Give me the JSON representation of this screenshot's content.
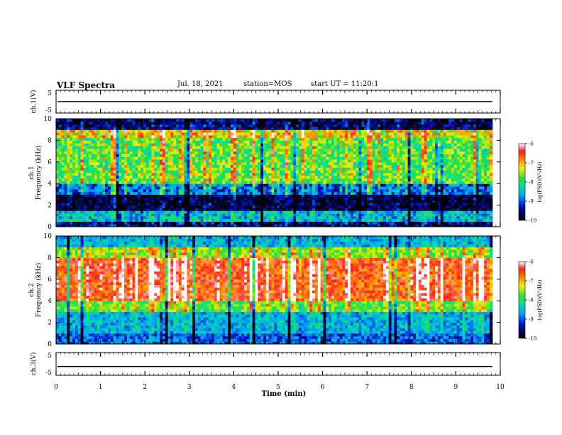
{
  "header": {
    "title": "VLF Spectra",
    "date": "Jul. 18, 2021",
    "station": "station=MOS",
    "start": "start UT = 11:20:1"
  },
  "chart_data": [
    {
      "type": "line",
      "panel": "ch1-waveform",
      "ylabel": "ch.1(V)",
      "ylim": [
        -5,
        5
      ],
      "yticks": [
        "5",
        "-5"
      ],
      "x": [
        0,
        10
      ],
      "values": [
        0,
        0
      ],
      "color": "#000000"
    },
    {
      "type": "heatmap",
      "panel": "ch1-spectrogram",
      "ylabel": "ch.1\nFrequency (kHz)",
      "ylim": [
        0,
        10
      ],
      "yticks": [
        "0",
        "2",
        "4",
        "6",
        "8",
        "10"
      ],
      "xlim": [
        0,
        10
      ],
      "colorbar": {
        "label": "log(PSD)(V²/Hz)",
        "range": [
          -10,
          -6
        ],
        "ticks": [
          "-6",
          "-7",
          "-8",
          "-9",
          "-10"
        ]
      },
      "bands": [
        {
          "f_range": [
            0,
            0.5
          ],
          "level": -9.5
        },
        {
          "f_range": [
            0.5,
            1.5
          ],
          "level": -8.5
        },
        {
          "f_range": [
            1.5,
            3.0
          ],
          "level": -9.8
        },
        {
          "f_range": [
            3.0,
            4.0
          ],
          "level": -9.0
        },
        {
          "f_range": [
            4.0,
            8.2
          ],
          "level": -7.8
        },
        {
          "f_range": [
            8.2,
            9.0
          ],
          "level": -7.2
        },
        {
          "f_range": [
            9.0,
            10.0
          ],
          "level": -9.6
        }
      ]
    },
    {
      "type": "heatmap",
      "panel": "ch2-spectrogram",
      "ylabel": "ch.2\nFrequency (kHz)",
      "ylim": [
        0,
        10
      ],
      "yticks": [
        "0",
        "2",
        "4",
        "6",
        "8",
        "10"
      ],
      "xlim": [
        0,
        10
      ],
      "colorbar": {
        "label": "log(PSD)(V²/Hz)",
        "range": [
          -10,
          -6
        ],
        "ticks": [
          "-6",
          "-7",
          "-8",
          "-9",
          "-10"
        ]
      },
      "bands": [
        {
          "f_range": [
            0,
            1.0
          ],
          "level": -9.0
        },
        {
          "f_range": [
            1.0,
            3.0
          ],
          "level": -8.6
        },
        {
          "f_range": [
            3.0,
            4.0
          ],
          "level": -7.8
        },
        {
          "f_range": [
            4.0,
            8.0
          ],
          "level": -6.6
        },
        {
          "f_range": [
            8.0,
            9.0
          ],
          "level": -7.6
        },
        {
          "f_range": [
            9.0,
            10.0
          ],
          "level": -8.6
        }
      ]
    },
    {
      "type": "line",
      "panel": "ch3-waveform",
      "ylabel": "ch.3(V)",
      "ylim": [
        -5,
        5
      ],
      "yticks": [
        "5",
        "-5"
      ],
      "x": [
        0,
        10
      ],
      "values": [
        -1.5,
        -1.5
      ],
      "color": "#000000"
    }
  ],
  "xaxis": {
    "label": "Time (min)",
    "ticks": [
      "0",
      "1",
      "2",
      "3",
      "4",
      "5",
      "6",
      "7",
      "8",
      "9",
      "10"
    ],
    "data_end": 9.82
  }
}
